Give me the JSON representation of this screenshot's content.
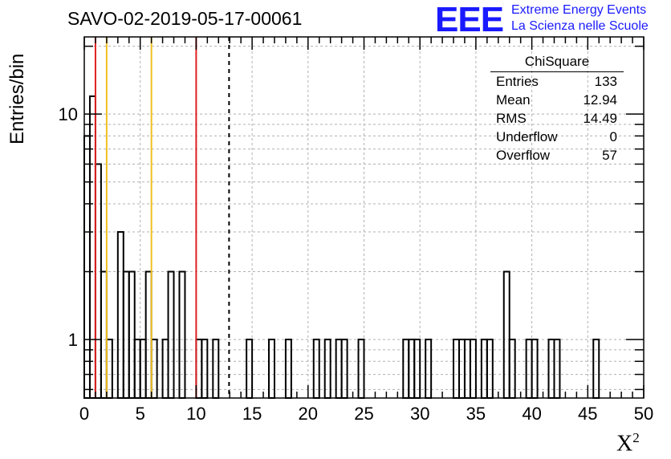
{
  "chart_data": {
    "type": "histogram",
    "title": "SAVO-02-2019-05-17-00061",
    "xlabel": "X",
    "xlabel_superscript": "2",
    "ylabel": "Entries/bin",
    "xlim": [
      0,
      50
    ],
    "ylim": [
      0.55,
      22
    ],
    "log_y": true,
    "grid": true,
    "bin_width": 0.5,
    "x_ticks": [
      "0",
      "5",
      "10",
      "15",
      "20",
      "25",
      "30",
      "35",
      "40",
      "45",
      "50"
    ],
    "y_ticks": [
      "1",
      "10"
    ],
    "bins": [
      {
        "x": 0.0,
        "count": 8
      },
      {
        "x": 0.5,
        "count": 12
      },
      {
        "x": 1.0,
        "count": 6
      },
      {
        "x": 1.5,
        "count": 2
      },
      {
        "x": 2.0,
        "count": 1
      },
      {
        "x": 3.0,
        "count": 3
      },
      {
        "x": 3.5,
        "count": 2
      },
      {
        "x": 4.0,
        "count": 2
      },
      {
        "x": 4.5,
        "count": 1
      },
      {
        "x": 5.0,
        "count": 1
      },
      {
        "x": 5.5,
        "count": 2
      },
      {
        "x": 6.0,
        "count": 1
      },
      {
        "x": 7.0,
        "count": 1
      },
      {
        "x": 7.5,
        "count": 2
      },
      {
        "x": 8.5,
        "count": 2
      },
      {
        "x": 10.0,
        "count": 1
      },
      {
        "x": 10.5,
        "count": 1
      },
      {
        "x": 11.5,
        "count": 1
      },
      {
        "x": 14.5,
        "count": 1
      },
      {
        "x": 16.5,
        "count": 1
      },
      {
        "x": 18.0,
        "count": 1
      },
      {
        "x": 20.5,
        "count": 1
      },
      {
        "x": 21.5,
        "count": 1
      },
      {
        "x": 22.5,
        "count": 1
      },
      {
        "x": 23.0,
        "count": 1
      },
      {
        "x": 24.5,
        "count": 1
      },
      {
        "x": 28.5,
        "count": 1
      },
      {
        "x": 29.0,
        "count": 1
      },
      {
        "x": 29.5,
        "count": 1
      },
      {
        "x": 30.5,
        "count": 1
      },
      {
        "x": 33.0,
        "count": 1
      },
      {
        "x": 33.5,
        "count": 1
      },
      {
        "x": 34.0,
        "count": 1
      },
      {
        "x": 34.5,
        "count": 1
      },
      {
        "x": 35.5,
        "count": 1
      },
      {
        "x": 36.0,
        "count": 1
      },
      {
        "x": 37.5,
        "count": 2
      },
      {
        "x": 38.0,
        "count": 1
      },
      {
        "x": 39.5,
        "count": 1
      },
      {
        "x": 40.0,
        "count": 1
      },
      {
        "x": 41.5,
        "count": 1
      },
      {
        "x": 42.0,
        "count": 1
      },
      {
        "x": 45.5,
        "count": 1
      }
    ],
    "vertical_lines": [
      {
        "x": 1,
        "color": "#e02020",
        "style": "solid"
      },
      {
        "x": 10,
        "color": "#e02020",
        "style": "solid"
      },
      {
        "x": 2,
        "color": "#f0c020",
        "style": "solid"
      },
      {
        "x": 6,
        "color": "#f0c020",
        "style": "solid"
      },
      {
        "x": 12.94,
        "color": "#000000",
        "style": "dashed"
      }
    ],
    "stats_box": {
      "title": "ChiSquare",
      "rows": [
        {
          "label": "Entries",
          "value": "133"
        },
        {
          "label": "Mean",
          "value": "12.94"
        },
        {
          "label": "RMS",
          "value": "14.49"
        },
        {
          "label": "Underflow",
          "value": "0"
        },
        {
          "label": "Overflow",
          "value": "57"
        }
      ]
    }
  },
  "logo": {
    "mark": "EEE",
    "line1": "Extreme Energy Events",
    "line2": "La Scienza nelle Scuole",
    "color": "#1a1aff"
  }
}
